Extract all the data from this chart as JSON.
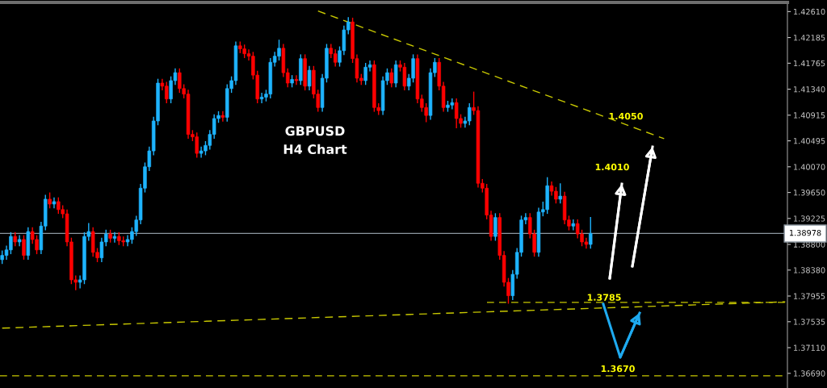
{
  "chart_data": {
    "type": "candlestick",
    "title": "GBPUSD\nH4 Chart",
    "categories": [
      null,
      null,
      null,
      null,
      null,
      null,
      null,
      null,
      null,
      null,
      null,
      null,
      null,
      null,
      null,
      null,
      null,
      null,
      null,
      null,
      null,
      null,
      null,
      null,
      null,
      null,
      null,
      null,
      null,
      null,
      null,
      null,
      null,
      null,
      null,
      null,
      null,
      null,
      null,
      null,
      null,
      null,
      null,
      null,
      null,
      null,
      null,
      null,
      null,
      null,
      null,
      null,
      null,
      null,
      null,
      null,
      null,
      null,
      null,
      null,
      null,
      null,
      null,
      null,
      null,
      null,
      null,
      null,
      null,
      null,
      null,
      null,
      null,
      null,
      null,
      null,
      null,
      null,
      null,
      null,
      null,
      null,
      null,
      null,
      null,
      null,
      null,
      null,
      null,
      null,
      null,
      null,
      null,
      null,
      null,
      null,
      null,
      null,
      null,
      null,
      null,
      null,
      null,
      null,
      null,
      null,
      null,
      null,
      null,
      null,
      null,
      null,
      null,
      null,
      null,
      null,
      null,
      null,
      null,
      null,
      null,
      null,
      null,
      null,
      null,
      null,
      null,
      null,
      null,
      null,
      null,
      null,
      null,
      null,
      null,
      null,
      null,
      null,
      null,
      null,
      null,
      null,
      null,
      null,
      null,
      null,
      null,
      null,
      null,
      null,
      null,
      null,
      null,
      null,
      null,
      null,
      null,
      null,
      null,
      null,
      null,
      null,
      null,
      null,
      null,
      null,
      null,
      null,
      null,
      null,
      null,
      null,
      null,
      null,
      null,
      null,
      null,
      null,
      null,
      null,
      null,
      null
    ],
    "ohlc": [
      [
        1.3855,
        1.387,
        1.3848,
        1.3862
      ],
      [
        1.3862,
        1.3878,
        1.3855,
        1.3871
      ],
      [
        1.3871,
        1.39,
        1.3864,
        1.3893
      ],
      [
        1.3893,
        1.39,
        1.3877,
        1.3884
      ],
      [
        1.3884,
        1.3895,
        1.3877,
        1.3888
      ],
      [
        1.3888,
        1.3895,
        1.3855,
        1.3862
      ],
      [
        1.3862,
        1.3908,
        1.3855,
        1.3901
      ],
      [
        1.3901,
        1.3908,
        1.3881,
        1.3888
      ],
      [
        1.3888,
        1.3895,
        1.3864,
        1.3871
      ],
      [
        1.3871,
        1.3917,
        1.3864,
        1.391
      ],
      [
        1.391,
        1.3961,
        1.3903,
        1.3954
      ],
      [
        1.3954,
        1.3965,
        1.3939,
        1.3946
      ],
      [
        1.3946,
        1.3957,
        1.3939,
        1.395
      ],
      [
        1.395,
        1.3957,
        1.393,
        1.3937
      ],
      [
        1.3937,
        1.3944,
        1.3923,
        1.393
      ],
      [
        1.393,
        1.3937,
        1.3877,
        1.3884
      ],
      [
        1.3884,
        1.3891,
        1.3815,
        1.3822
      ],
      [
        1.3822,
        1.3829,
        1.3805,
        1.3818
      ],
      [
        1.3818,
        1.3829,
        1.3808,
        1.3822
      ],
      [
        1.3822,
        1.39,
        1.3815,
        1.3893
      ],
      [
        1.3893,
        1.3915,
        1.3886,
        1.3901
      ],
      [
        1.3901,
        1.3908,
        1.386,
        1.3867
      ],
      [
        1.3867,
        1.3874,
        1.3851,
        1.3858
      ],
      [
        1.3858,
        1.3891,
        1.3851,
        1.3884
      ],
      [
        1.3884,
        1.3904,
        1.3877,
        1.3897
      ],
      [
        1.3897,
        1.3904,
        1.3883,
        1.389
      ],
      [
        1.389,
        1.39,
        1.3883,
        1.3893
      ],
      [
        1.3893,
        1.39,
        1.3879,
        1.3886
      ],
      [
        1.3886,
        1.3893,
        1.3877,
        1.3884
      ],
      [
        1.3884,
        1.3895,
        1.3877,
        1.3888
      ],
      [
        1.3888,
        1.3908,
        1.3881,
        1.3901
      ],
      [
        1.3901,
        1.3927,
        1.3894,
        1.392
      ],
      [
        1.392,
        1.3979,
        1.3913,
        1.3972
      ],
      [
        1.3972,
        1.4014,
        1.3965,
        1.4007
      ],
      [
        1.4007,
        1.404,
        1.4,
        1.4033
      ],
      [
        1.4033,
        1.4089,
        1.4026,
        1.4082
      ],
      [
        1.4082,
        1.4151,
        1.4075,
        1.4144
      ],
      [
        1.4144,
        1.4151,
        1.4132,
        1.4139
      ],
      [
        1.4139,
        1.4146,
        1.4111,
        1.4118
      ],
      [
        1.4118,
        1.4155,
        1.4111,
        1.4148
      ],
      [
        1.4148,
        1.4168,
        1.4141,
        1.4161
      ],
      [
        1.4161,
        1.4168,
        1.4128,
        1.4135
      ],
      [
        1.4135,
        1.4142,
        1.4119,
        1.4126
      ],
      [
        1.4126,
        1.4133,
        1.4053,
        1.406
      ],
      [
        1.406,
        1.4067,
        1.4049,
        1.4056
      ],
      [
        1.4056,
        1.4063,
        1.4022,
        1.4029
      ],
      [
        1.4029,
        1.404,
        1.4022,
        1.4033
      ],
      [
        1.4033,
        1.4049,
        1.4026,
        1.4042
      ],
      [
        1.4042,
        1.4067,
        1.4035,
        1.406
      ],
      [
        1.406,
        1.4093,
        1.4053,
        1.4086
      ],
      [
        1.4086,
        1.4098,
        1.4079,
        1.4091
      ],
      [
        1.4091,
        1.4098,
        1.4081,
        1.4088
      ],
      [
        1.4088,
        1.4142,
        1.4081,
        1.4135
      ],
      [
        1.4135,
        1.4155,
        1.4128,
        1.4148
      ],
      [
        1.4148,
        1.4212,
        1.4141,
        1.4205
      ],
      [
        1.4205,
        1.4212,
        1.4193,
        1.42
      ],
      [
        1.42,
        1.4207,
        1.4185,
        1.4192
      ],
      [
        1.4192,
        1.4199,
        1.4181,
        1.4188
      ],
      [
        1.4188,
        1.4195,
        1.415,
        1.4157
      ],
      [
        1.4157,
        1.4164,
        1.4111,
        1.4118
      ],
      [
        1.4118,
        1.4128,
        1.4111,
        1.4121
      ],
      [
        1.4121,
        1.4133,
        1.4114,
        1.4126
      ],
      [
        1.4126,
        1.4185,
        1.4119,
        1.4178
      ],
      [
        1.4178,
        1.4195,
        1.4171,
        1.4188
      ],
      [
        1.4188,
        1.4215,
        1.4181,
        1.4201
      ],
      [
        1.4201,
        1.4208,
        1.4154,
        1.4161
      ],
      [
        1.4161,
        1.4168,
        1.4137,
        1.4144
      ],
      [
        1.4144,
        1.4157,
        1.4137,
        1.415
      ],
      [
        1.415,
        1.4157,
        1.4141,
        1.4148
      ],
      [
        1.4148,
        1.4191,
        1.4141,
        1.4184
      ],
      [
        1.4184,
        1.4191,
        1.4132,
        1.4139
      ],
      [
        1.4139,
        1.4172,
        1.4132,
        1.4165
      ],
      [
        1.4165,
        1.4172,
        1.4119,
        1.4126
      ],
      [
        1.4126,
        1.4133,
        1.4097,
        1.4104
      ],
      [
        1.4104,
        1.4159,
        1.4097,
        1.4152
      ],
      [
        1.4152,
        1.4208,
        1.4145,
        1.4201
      ],
      [
        1.4201,
        1.4208,
        1.4185,
        1.4192
      ],
      [
        1.4192,
        1.4199,
        1.4171,
        1.4178
      ],
      [
        1.4178,
        1.4204,
        1.4171,
        1.4197
      ],
      [
        1.4197,
        1.4238,
        1.419,
        1.4231
      ],
      [
        1.4231,
        1.4252,
        1.4224,
        1.4244
      ],
      [
        1.4244,
        1.4251,
        1.4177,
        1.4184
      ],
      [
        1.4184,
        1.4191,
        1.4145,
        1.4152
      ],
      [
        1.4152,
        1.4159,
        1.4141,
        1.4148
      ],
      [
        1.4148,
        1.4177,
        1.4141,
        1.417
      ],
      [
        1.417,
        1.4181,
        1.4163,
        1.4174
      ],
      [
        1.4174,
        1.4181,
        1.4097,
        1.4104
      ],
      [
        1.4104,
        1.4111,
        1.4092,
        1.4099
      ],
      [
        1.4099,
        1.4155,
        1.4092,
        1.4148
      ],
      [
        1.4148,
        1.4168,
        1.4141,
        1.4161
      ],
      [
        1.4161,
        1.4168,
        1.4137,
        1.4144
      ],
      [
        1.4144,
        1.4181,
        1.4137,
        1.4174
      ],
      [
        1.4174,
        1.4181,
        1.4163,
        1.417
      ],
      [
        1.417,
        1.4177,
        1.4132,
        1.4139
      ],
      [
        1.4139,
        1.4159,
        1.4132,
        1.4152
      ],
      [
        1.4152,
        1.4191,
        1.4145,
        1.4184
      ],
      [
        1.4184,
        1.4191,
        1.4111,
        1.4118
      ],
      [
        1.4118,
        1.4125,
        1.4097,
        1.4104
      ],
      [
        1.4104,
        1.4111,
        1.408,
        1.4091
      ],
      [
        1.4091,
        1.4168,
        1.4084,
        1.4161
      ],
      [
        1.4161,
        1.4185,
        1.4154,
        1.4178
      ],
      [
        1.4178,
        1.4185,
        1.4132,
        1.4139
      ],
      [
        1.4139,
        1.4146,
        1.4097,
        1.4104
      ],
      [
        1.4104,
        1.4115,
        1.4097,
        1.4108
      ],
      [
        1.4108,
        1.4119,
        1.4101,
        1.4112
      ],
      [
        1.4112,
        1.4119,
        1.407,
        1.4086
      ],
      [
        1.4086,
        1.4093,
        1.4071,
        1.4078
      ],
      [
        1.4078,
        1.4089,
        1.4071,
        1.4082
      ],
      [
        1.4082,
        1.4111,
        1.4075,
        1.4104
      ],
      [
        1.4104,
        1.413,
        1.4092,
        1.4099
      ],
      [
        1.4099,
        1.4106,
        1.3973,
        1.398
      ],
      [
        1.398,
        1.3987,
        1.3965,
        1.3972
      ],
      [
        1.3972,
        1.3979,
        1.3921,
        1.3928
      ],
      [
        1.3928,
        1.3935,
        1.3886,
        1.3893
      ],
      [
        1.3893,
        1.3931,
        1.3886,
        1.3924
      ],
      [
        1.3924,
        1.3931,
        1.3855,
        1.3862
      ],
      [
        1.3862,
        1.3869,
        1.3811,
        1.3818
      ],
      [
        1.3818,
        1.3825,
        1.3783,
        1.3796
      ],
      [
        1.3796,
        1.3838,
        1.3789,
        1.3831
      ],
      [
        1.3831,
        1.3874,
        1.3824,
        1.3867
      ],
      [
        1.3867,
        1.3927,
        1.386,
        1.392
      ],
      [
        1.392,
        1.3931,
        1.3913,
        1.3924
      ],
      [
        1.3924,
        1.3931,
        1.389,
        1.3897
      ],
      [
        1.3897,
        1.3904,
        1.386,
        1.3867
      ],
      [
        1.3867,
        1.394,
        1.386,
        1.3933
      ],
      [
        1.3933,
        1.395,
        1.3926,
        1.3937
      ],
      [
        1.3937,
        1.399,
        1.393,
        1.3976
      ],
      [
        1.3976,
        1.3983,
        1.396,
        1.3967
      ],
      [
        1.3967,
        1.3974,
        1.3947,
        1.3954
      ],
      [
        1.3954,
        1.398,
        1.3947,
        1.3959
      ],
      [
        1.3959,
        1.3966,
        1.3913,
        1.392
      ],
      [
        1.392,
        1.3927,
        1.3903,
        1.391
      ],
      [
        1.391,
        1.3921,
        1.3903,
        1.3914
      ],
      [
        1.3914,
        1.3921,
        1.389,
        1.3897
      ],
      [
        1.3897,
        1.3904,
        1.3877,
        1.3884
      ],
      [
        1.3884,
        1.3891,
        1.3873,
        1.388
      ],
      [
        1.388,
        1.3925,
        1.3873,
        1.3898
      ],
      null,
      null,
      null,
      null,
      null,
      null,
      null,
      null,
      null,
      null,
      null,
      null,
      null,
      null,
      null,
      null,
      null,
      null,
      null,
      null,
      null,
      null,
      null,
      null,
      null,
      null,
      null,
      null,
      null,
      null,
      null,
      null,
      null,
      null,
      null,
      null,
      null,
      null,
      null,
      null,
      null,
      null,
      null,
      null,
      null
    ],
    "series": [
      {
        "type": "line",
        "color": "#c8c800",
        "line_style": "dashed",
        "values": [
          null,
          null,
          null,
          null,
          null,
          null,
          null,
          null,
          null,
          null,
          null,
          null,
          null,
          null,
          null,
          null,
          null,
          null,
          null,
          null,
          null,
          null,
          null,
          null,
          null,
          null,
          null,
          null,
          null,
          null,
          null,
          null,
          null,
          null,
          null,
          null,
          null,
          null,
          null,
          null,
          null,
          null,
          null,
          null,
          null,
          null,
          null,
          null,
          null,
          null,
          null,
          null,
          null,
          null,
          null,
          null,
          null,
          null,
          null,
          null,
          null,
          null,
          null,
          null,
          null,
          null,
          null,
          null,
          null,
          null,
          null,
          null,
          null,
          1.4262,
          null,
          null,
          null,
          null,
          null,
          null,
          null,
          null,
          null,
          null,
          null,
          null,
          null,
          null,
          null,
          null,
          null,
          null,
          null,
          null,
          null,
          null,
          null,
          null,
          null,
          null,
          null,
          null,
          null,
          null,
          null,
          null,
          null,
          null,
          null,
          null,
          null,
          null,
          null,
          null,
          null,
          null,
          null,
          null,
          null,
          null,
          null,
          null,
          null,
          null,
          null,
          null,
          null,
          null,
          null,
          null,
          null,
          null,
          null,
          null,
          null,
          null,
          null,
          null,
          null,
          null,
          null,
          null,
          null,
          null,
          null,
          null,
          null,
          null,
          null,
          null,
          null,
          null,
          null,
          1.4053,
          null,
          null,
          null,
          null,
          null,
          null,
          null,
          null,
          null,
          null,
          null,
          null,
          null,
          null,
          null,
          null,
          null,
          null,
          null,
          null,
          null,
          null,
          null,
          null,
          null,
          null,
          null,
          null
        ]
      },
      {
        "type": "line",
        "color": "#c8c800",
        "line_style": "dashed",
        "values": [
          1.3743,
          null,
          null,
          null,
          null,
          null,
          null,
          null,
          null,
          null,
          null,
          null,
          null,
          null,
          null,
          null,
          null,
          null,
          null,
          null,
          null,
          null,
          null,
          null,
          null,
          null,
          null,
          null,
          null,
          null,
          null,
          null,
          null,
          null,
          null,
          null,
          null,
          null,
          null,
          null,
          null,
          null,
          null,
          null,
          null,
          null,
          null,
          null,
          null,
          null,
          null,
          null,
          null,
          null,
          null,
          null,
          null,
          null,
          null,
          null,
          null,
          null,
          null,
          null,
          null,
          null,
          null,
          null,
          null,
          null,
          null,
          null,
          null,
          null,
          null,
          null,
          null,
          null,
          null,
          null,
          null,
          null,
          null,
          null,
          null,
          null,
          null,
          null,
          null,
          null,
          null,
          null,
          null,
          null,
          null,
          null,
          null,
          null,
          null,
          null,
          null,
          null,
          null,
          null,
          null,
          null,
          null,
          null,
          null,
          null,
          null,
          null,
          null,
          null,
          null,
          null,
          null,
          null,
          null,
          null,
          null,
          null,
          null,
          null,
          null,
          null,
          null,
          null,
          null,
          null,
          null,
          null,
          null,
          null,
          null,
          null,
          null,
          null,
          null,
          null,
          null,
          null,
          null,
          null,
          null,
          null,
          null,
          null,
          null,
          null,
          null,
          null,
          null,
          null,
          null,
          null,
          null,
          null,
          null,
          null,
          null,
          null,
          null,
          null,
          null,
          null,
          null,
          null,
          null,
          null,
          null,
          null,
          null,
          null,
          null,
          null,
          null,
          null,
          null,
          null,
          null,
          1.3786
        ]
      }
    ],
    "annotations": [
      "1.4050",
      "1.4010",
      "1.3670"
    ],
    "ref_lines": [
      {
        "axis": "y",
        "value": 1.38978,
        "label": "1.38978",
        "color": "#8c96a0",
        "line_style": "solid"
      },
      {
        "axis": "y",
        "value": 1.3785,
        "label": "1.3785",
        "color": "#c8c800",
        "line_style": "dashed"
      },
      {
        "axis": "y",
        "value": 1.3665,
        "color": "#c8c800",
        "line_style": "dashed"
      }
    ],
    "ylim": [
      1.3645,
      1.4276
    ],
    "yticks": [
      {
        "value": 1.4261,
        "label": "1.42610"
      },
      {
        "value": 1.42185,
        "label": "1.42185"
      },
      {
        "value": 1.41765,
        "label": "1.41765"
      },
      {
        "value": 1.4134,
        "label": "1.41340"
      },
      {
        "value": 1.40915,
        "label": "1.40915"
      },
      {
        "value": 1.40495,
        "label": "1.40495"
      },
      {
        "value": 1.4007,
        "label": "1.40070"
      },
      {
        "value": 1.3965,
        "label": "1.39650"
      },
      {
        "value": 1.39225,
        "label": "1.39225"
      },
      {
        "value": 1.388,
        "label": "1.38800"
      },
      {
        "value": 1.3838,
        "label": "1.38380"
      },
      {
        "value": 1.37955,
        "label": "1.37955"
      },
      {
        "value": 1.37535,
        "label": "1.37535"
      },
      {
        "value": 1.3711,
        "label": "1.37110"
      },
      {
        "value": 1.3669,
        "label": "1.36690"
      }
    ],
    "tick_labels": "y",
    "grid": false,
    "legend": false
  }
}
